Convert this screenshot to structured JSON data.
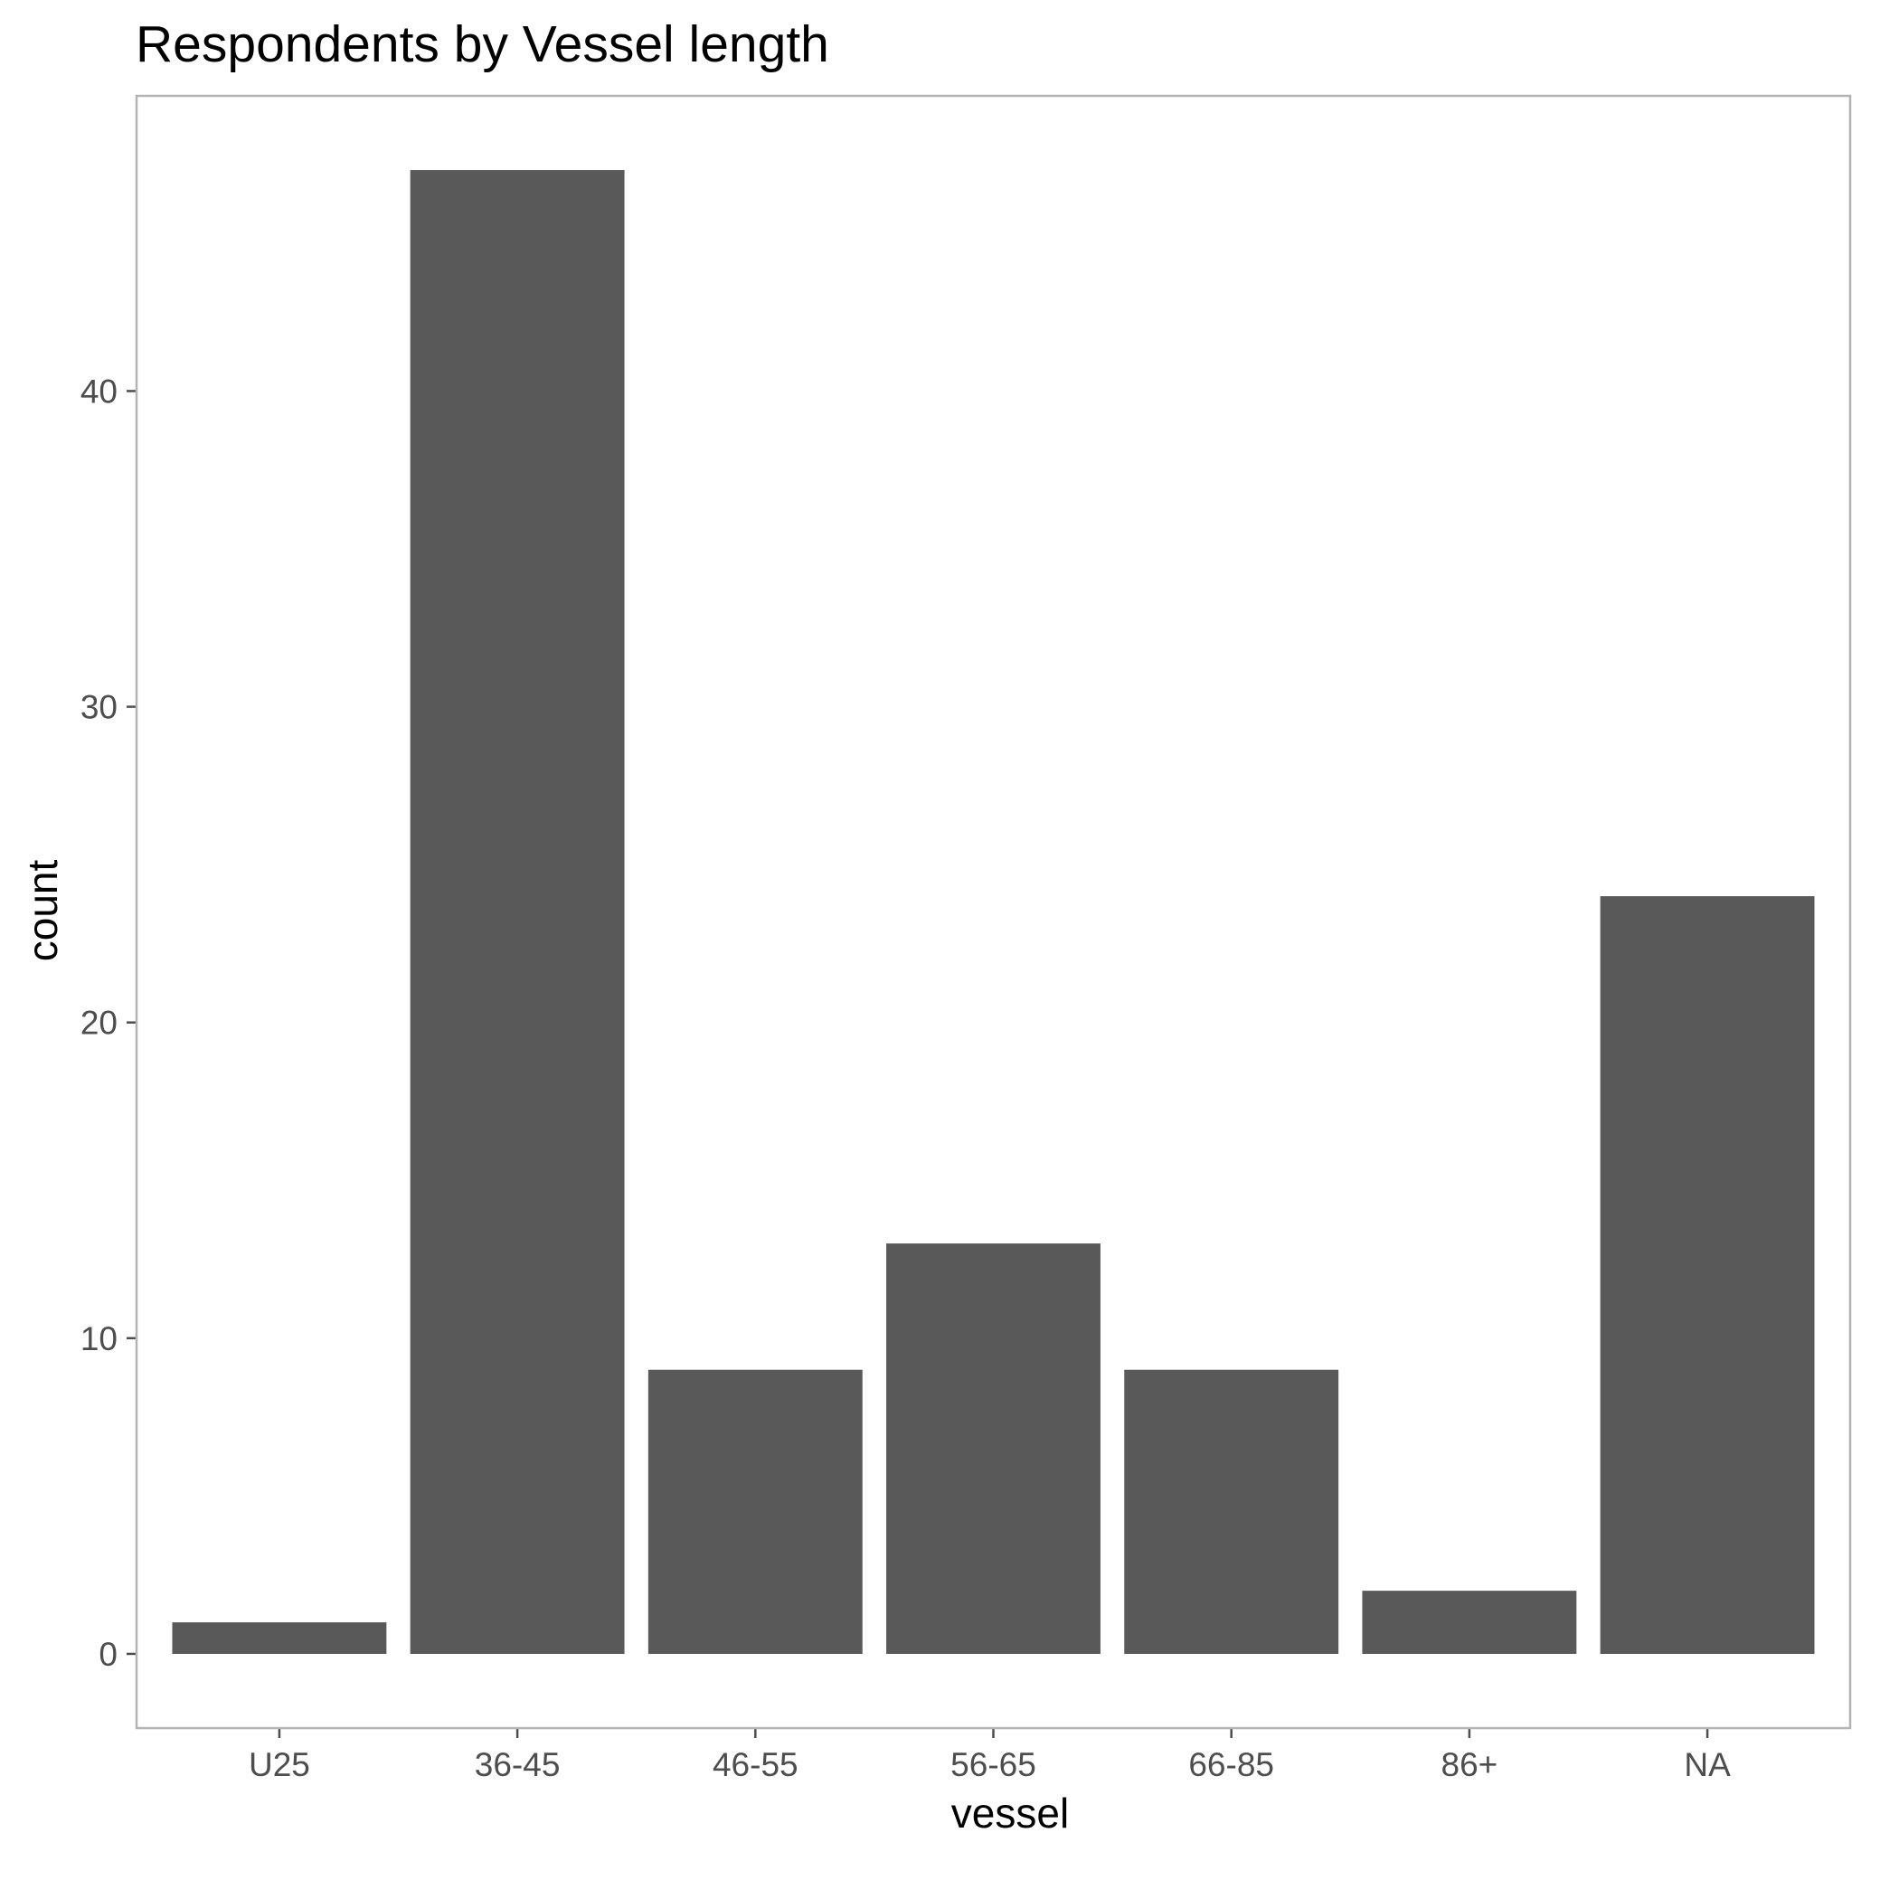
{
  "chart_data": {
    "type": "bar",
    "title": "Respondents by Vessel length",
    "xlabel": "vessel",
    "ylabel": "count",
    "categories": [
      "U25",
      "36-45",
      "46-55",
      "56-65",
      "66-85",
      "86+",
      "NA"
    ],
    "values": [
      1,
      47,
      9,
      13,
      9,
      2,
      24
    ],
    "ylim": [
      -2.35,
      49.35
    ],
    "yticks": [
      0,
      10,
      20,
      30,
      40
    ],
    "grid": false,
    "legend": "none",
    "colors": {
      "bar": "#595959",
      "panel_border": "#b3b3b3",
      "tick": "#4d4d4d",
      "text": "#000000",
      "background": "#ffffff"
    }
  }
}
